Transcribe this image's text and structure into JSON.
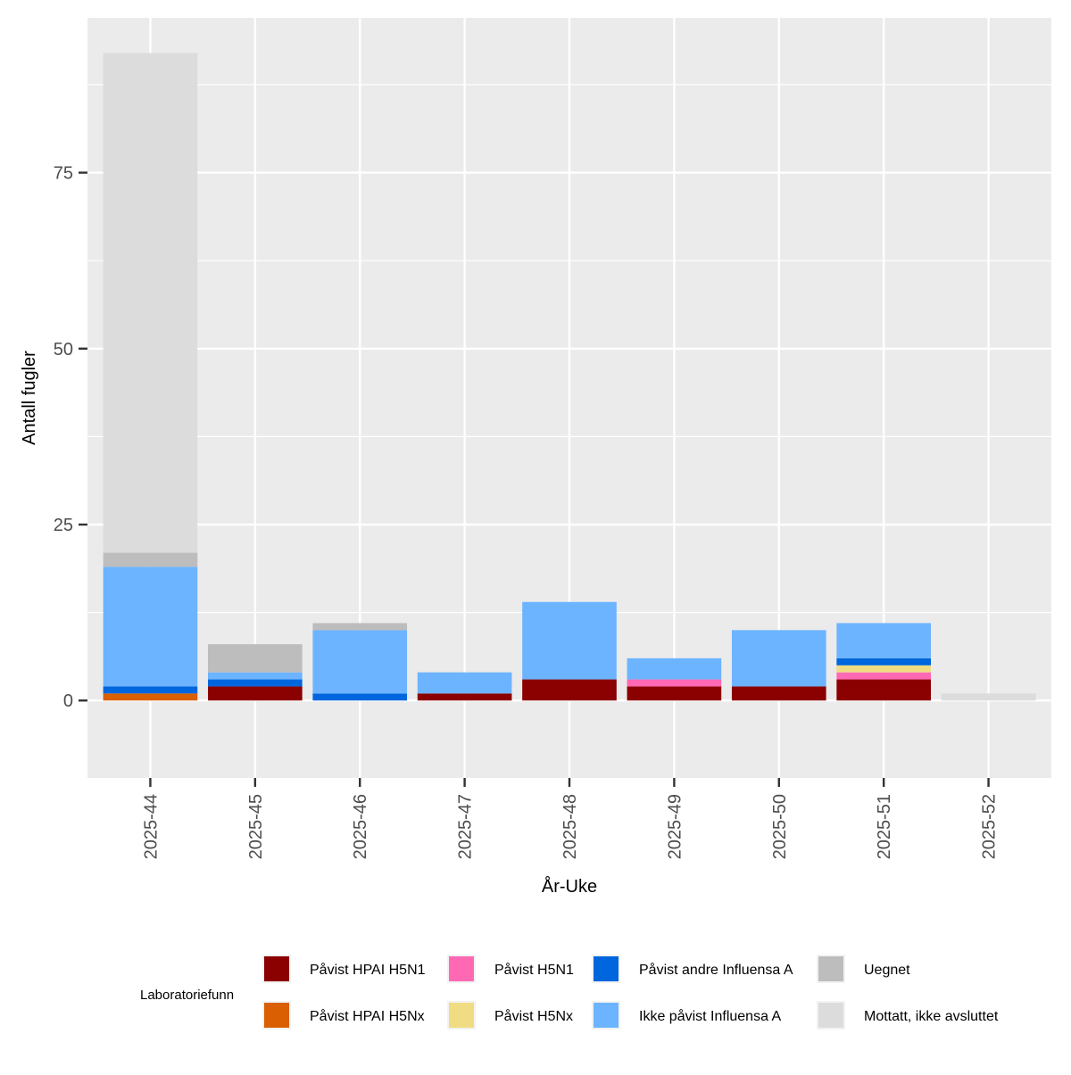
{
  "chart_data": {
    "type": "bar",
    "stacked": true,
    "title": "",
    "xlabel": "År-Uke",
    "ylabel": "Antall fugler",
    "ylim": [
      -11,
      97
    ],
    "yticks": [
      0,
      25,
      50,
      75
    ],
    "categories": [
      "2025-44",
      "2025-45",
      "2025-46",
      "2025-47",
      "2025-48",
      "2025-49",
      "2025-50",
      "2025-51",
      "2025-52"
    ],
    "series": [
      {
        "name": "Påvist HPAI H5N1",
        "color": "#8B0000",
        "values": [
          0,
          2,
          0,
          1,
          3,
          2,
          2,
          3,
          0
        ]
      },
      {
        "name": "Påvist HPAI H5Nx",
        "color": "#D95F02",
        "values": [
          1,
          0,
          0,
          0,
          0,
          0,
          0,
          0,
          0
        ]
      },
      {
        "name": "Påvist H5N1",
        "color": "#FF69B4",
        "values": [
          0,
          0,
          0,
          0,
          0,
          1,
          0,
          1,
          0
        ]
      },
      {
        "name": "Påvist H5Nx",
        "color": "#F0DC82",
        "values": [
          0,
          0,
          0,
          0,
          0,
          0,
          0,
          1,
          0
        ]
      },
      {
        "name": "Påvist andre Influensa A",
        "color": "#0066DD",
        "values": [
          1,
          1,
          1,
          0,
          0,
          0,
          0,
          1,
          0
        ]
      },
      {
        "name": "Ikke påvist Influensa A",
        "color": "#6CB4FF",
        "values": [
          17,
          1,
          9,
          3,
          11,
          3,
          8,
          5,
          0
        ]
      },
      {
        "name": "Uegnet",
        "color": "#BDBDBD",
        "values": [
          2,
          4,
          1,
          0,
          0,
          0,
          0,
          0,
          0
        ]
      },
      {
        "name": "Mottatt, ikke avsluttet",
        "color": "#DCDCDC",
        "values": [
          71,
          0,
          0,
          0,
          0,
          0,
          0,
          0,
          1
        ]
      }
    ],
    "legend": {
      "title": "Laboratoriefunn",
      "position": "bottom"
    }
  }
}
